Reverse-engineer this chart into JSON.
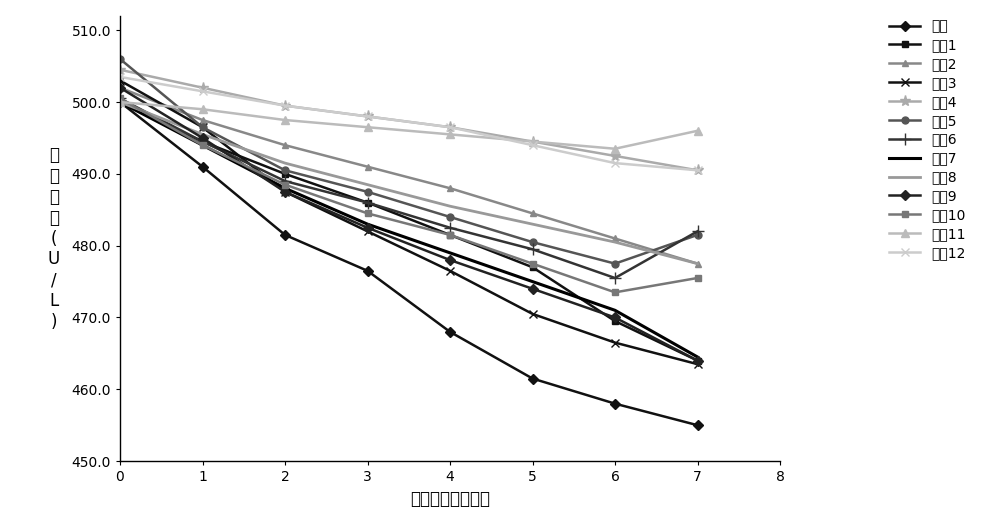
{
  "x": [
    0,
    1,
    2,
    3,
    4,
    5,
    6,
    7
  ],
  "series": [
    {
      "label": "对照",
      "color": "#111111",
      "marker": "D",
      "markersize": 5,
      "linewidth": 1.8,
      "values": [
        500.0,
        491.0,
        481.5,
        476.5,
        468.0,
        461.5,
        458.0,
        455.0
      ]
    },
    {
      "label": "实例1",
      "color": "#111111",
      "marker": "s",
      "markersize": 5,
      "linewidth": 1.8,
      "values": [
        500.0,
        494.5,
        490.0,
        486.0,
        481.5,
        477.0,
        469.5,
        464.0
      ]
    },
    {
      "label": "实例2",
      "color": "#888888",
      "marker": "^",
      "markersize": 5,
      "linewidth": 1.8,
      "values": [
        502.0,
        497.5,
        494.0,
        491.0,
        488.0,
        484.5,
        481.0,
        477.5
      ]
    },
    {
      "label": "实例3",
      "color": "#111111",
      "marker": "x",
      "markersize": 6,
      "linewidth": 1.8,
      "values": [
        503.0,
        496.5,
        487.5,
        482.0,
        476.5,
        470.5,
        466.5,
        463.5
      ]
    },
    {
      "label": "实例4",
      "color": "#aaaaaa",
      "marker": "*",
      "markersize": 8,
      "linewidth": 1.8,
      "values": [
        504.5,
        502.0,
        499.5,
        498.0,
        496.5,
        494.5,
        492.5,
        490.5
      ]
    },
    {
      "label": "实例5",
      "color": "#555555",
      "marker": "o",
      "markersize": 5,
      "linewidth": 1.8,
      "values": [
        506.0,
        496.5,
        490.5,
        487.5,
        484.0,
        480.5,
        477.5,
        481.5
      ]
    },
    {
      "label": "实例6",
      "color": "#333333",
      "marker": "+",
      "markersize": 8,
      "linewidth": 1.8,
      "values": [
        500.5,
        494.5,
        489.0,
        486.0,
        482.5,
        479.5,
        475.5,
        482.0
      ]
    },
    {
      "label": "实例7",
      "color": "#000000",
      "marker": null,
      "markersize": 5,
      "linewidth": 2.2,
      "values": [
        500.0,
        494.0,
        488.0,
        483.0,
        479.0,
        475.0,
        471.0,
        464.5
      ]
    },
    {
      "label": "实例8",
      "color": "#999999",
      "marker": null,
      "markersize": 5,
      "linewidth": 2.0,
      "values": [
        500.0,
        495.5,
        491.5,
        488.5,
        485.5,
        483.0,
        480.5,
        477.5
      ]
    },
    {
      "label": "实例9",
      "color": "#222222",
      "marker": "D",
      "markersize": 5,
      "linewidth": 1.8,
      "values": [
        502.0,
        495.0,
        487.5,
        482.5,
        478.0,
        474.0,
        470.0,
        464.0
      ]
    },
    {
      "label": "实例10",
      "color": "#777777",
      "marker": "s",
      "markersize": 5,
      "linewidth": 1.8,
      "values": [
        500.5,
        494.0,
        488.5,
        484.5,
        481.5,
        477.5,
        473.5,
        475.5
      ]
    },
    {
      "label": "实例11",
      "color": "#bbbbbb",
      "marker": "^",
      "markersize": 6,
      "linewidth": 1.8,
      "values": [
        500.0,
        499.0,
        497.5,
        496.5,
        495.5,
        494.5,
        493.5,
        496.0
      ]
    },
    {
      "label": "实例12",
      "color": "#cccccc",
      "marker": "x",
      "markersize": 6,
      "linewidth": 1.8,
      "values": [
        503.5,
        501.5,
        499.5,
        498.0,
        496.5,
        494.0,
        491.5,
        490.5
      ]
    }
  ],
  "xlabel": "热加速时间（天）",
  "ylabel_lines": [
    "高",
    "値",
    "样",
    "本",
    "(",
    "U",
    "/",
    "L",
    ")"
  ],
  "xlim": [
    0,
    8
  ],
  "ylim": [
    450.0,
    512.0
  ],
  "yticks": [
    450.0,
    460.0,
    470.0,
    480.0,
    490.0,
    500.0,
    510.0
  ],
  "xticks": [
    0,
    1,
    2,
    3,
    4,
    5,
    6,
    7,
    8
  ],
  "background_color": "#ffffff",
  "figsize": [
    10.0,
    5.3
  ],
  "dpi": 100
}
